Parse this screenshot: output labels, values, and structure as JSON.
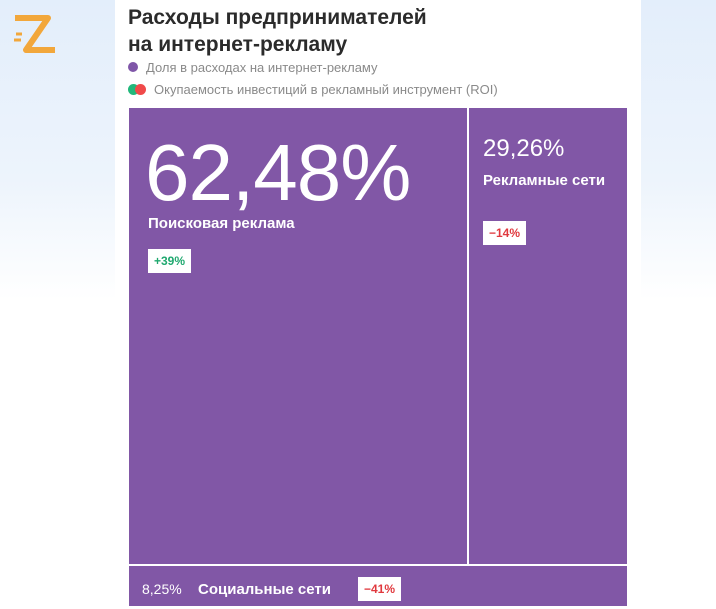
{
  "title_line1": "Расходы предпринимателей",
  "title_line2": "на интернет-рекламу",
  "legend": {
    "share": "Доля в расходах на интернет-рекламу",
    "roi": "Окупаемость инвестиций в рекламный инструмент (ROI)"
  },
  "colors": {
    "tile": "#8157a6",
    "positive": "#1fa86f",
    "negative": "#e0393e",
    "roi_green": "#21b87b",
    "roi_red": "#f04a4a",
    "logo": "#f2a73b"
  },
  "icons": {
    "logo": "z-logo-icon"
  },
  "chart_data": {
    "type": "treemap",
    "title": "Расходы предпринимателей на интернет-рекламу",
    "items": [
      {
        "label": "Поисковая реклама",
        "value": 62.48,
        "value_text": "62,48%",
        "roi_text": "+39%",
        "roi": 39
      },
      {
        "label": "Рекламные сети",
        "value": 29.26,
        "value_text": "29,26%",
        "roi_text": "−14%",
        "roi": -14
      },
      {
        "label": "Социальные сети",
        "value": 8.25,
        "value_text": "8,25%",
        "roi_text": "−41%",
        "roi": -41
      }
    ]
  }
}
